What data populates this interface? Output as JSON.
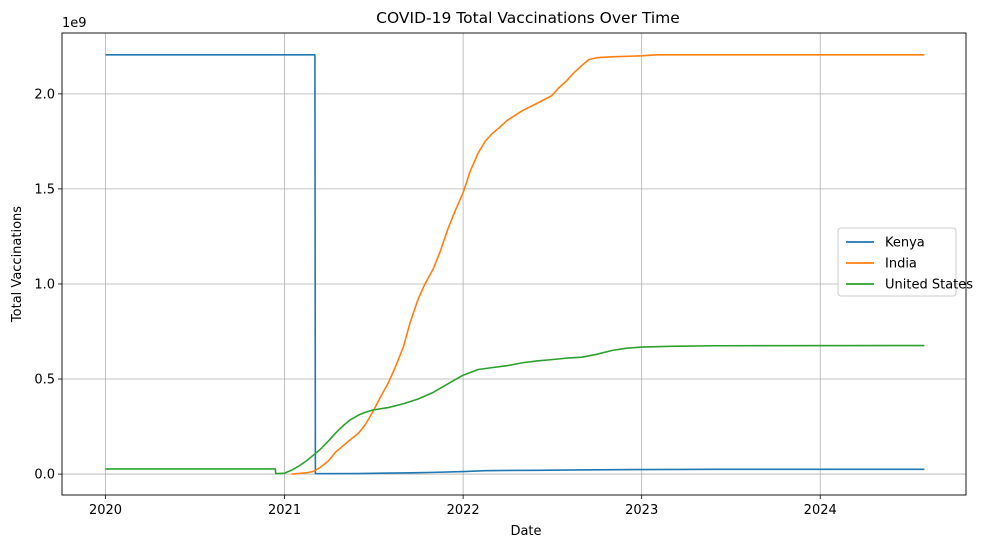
{
  "chart_data": {
    "type": "line",
    "title": "COVID-19 Total Vaccinations Over Time",
    "xlabel": "Date",
    "ylabel": "Total Vaccinations",
    "y_offset_label": "1e9",
    "y_scale": 1000000000,
    "xlim": [
      "2019-10-04",
      "2024-10-25"
    ],
    "ylim": [
      -110000000,
      2320000000
    ],
    "grid": true,
    "legend_position": "center-right",
    "x_ticks": [
      {
        "date": "2020-01-01",
        "label": "2020"
      },
      {
        "date": "2021-01-01",
        "label": "2021"
      },
      {
        "date": "2022-01-01",
        "label": "2022"
      },
      {
        "date": "2023-01-01",
        "label": "2023"
      },
      {
        "date": "2024-01-01",
        "label": "2024"
      }
    ],
    "y_ticks": [
      {
        "value": 0,
        "label": "0.0"
      },
      {
        "value": 500000000,
        "label": "0.5"
      },
      {
        "value": 1000000000,
        "label": "1.0"
      },
      {
        "value": 1500000000,
        "label": "1.5"
      },
      {
        "value": 2000000000,
        "label": "2.0"
      }
    ],
    "series": [
      {
        "name": "Kenya",
        "color": "#1f77b4",
        "points": [
          [
            "2020-01-01",
            2205000000
          ],
          [
            "2021-03-04",
            2205000000
          ],
          [
            "2021-03-05",
            2000000
          ],
          [
            "2021-06-01",
            3000000
          ],
          [
            "2021-09-01",
            6000000
          ],
          [
            "2021-11-01",
            9000000
          ],
          [
            "2022-01-01",
            13000000
          ],
          [
            "2022-02-15",
            18000000
          ],
          [
            "2022-04-01",
            19000000
          ],
          [
            "2022-06-01",
            20000000
          ],
          [
            "2022-08-20",
            22000000
          ],
          [
            "2023-01-01",
            24000000
          ],
          [
            "2023-06-01",
            25000000
          ],
          [
            "2024-08-01",
            25000000
          ]
        ]
      },
      {
        "name": "India",
        "color": "#ff7f0e",
        "points": [
          [
            "2021-01-16",
            0
          ],
          [
            "2021-02-15",
            7000000
          ],
          [
            "2021-03-01",
            14000000
          ],
          [
            "2021-03-15",
            35000000
          ],
          [
            "2021-04-01",
            70000000
          ],
          [
            "2021-04-15",
            115000000
          ],
          [
            "2021-05-01",
            150000000
          ],
          [
            "2021-05-15",
            180000000
          ],
          [
            "2021-06-01",
            215000000
          ],
          [
            "2021-06-15",
            260000000
          ],
          [
            "2021-07-01",
            330000000
          ],
          [
            "2021-07-15",
            400000000
          ],
          [
            "2021-08-01",
            480000000
          ],
          [
            "2021-08-15",
            560000000
          ],
          [
            "2021-09-01",
            670000000
          ],
          [
            "2021-09-15",
            800000000
          ],
          [
            "2021-10-01",
            920000000
          ],
          [
            "2021-10-15",
            1000000000
          ],
          [
            "2021-11-01",
            1080000000
          ],
          [
            "2021-11-15",
            1170000000
          ],
          [
            "2021-12-01",
            1290000000
          ],
          [
            "2021-12-15",
            1380000000
          ],
          [
            "2022-01-01",
            1480000000
          ],
          [
            "2022-01-15",
            1590000000
          ],
          [
            "2022-02-01",
            1690000000
          ],
          [
            "2022-02-15",
            1750000000
          ],
          [
            "2022-03-01",
            1790000000
          ],
          [
            "2022-03-15",
            1820000000
          ],
          [
            "2022-04-01",
            1860000000
          ],
          [
            "2022-05-01",
            1910000000
          ],
          [
            "2022-06-01",
            1950000000
          ],
          [
            "2022-07-01",
            1990000000
          ],
          [
            "2022-07-15",
            2030000000
          ],
          [
            "2022-08-01",
            2070000000
          ],
          [
            "2022-08-15",
            2110000000
          ],
          [
            "2022-09-01",
            2150000000
          ],
          [
            "2022-09-15",
            2180000000
          ],
          [
            "2022-10-01",
            2190000000
          ],
          [
            "2022-11-01",
            2195000000
          ],
          [
            "2023-01-01",
            2200000000
          ],
          [
            "2023-02-01",
            2205000000
          ],
          [
            "2024-08-01",
            2205000000
          ]
        ]
      },
      {
        "name": "United States",
        "color": "#2ca02c",
        "points": [
          [
            "2020-01-01",
            27000000
          ],
          [
            "2020-12-13",
            27000000
          ],
          [
            "2020-12-14",
            2000000
          ],
          [
            "2021-01-01",
            5000000
          ],
          [
            "2021-01-15",
            20000000
          ],
          [
            "2021-02-01",
            45000000
          ],
          [
            "2021-02-15",
            70000000
          ],
          [
            "2021-03-01",
            100000000
          ],
          [
            "2021-03-15",
            130000000
          ],
          [
            "2021-04-01",
            175000000
          ],
          [
            "2021-04-15",
            215000000
          ],
          [
            "2021-05-01",
            255000000
          ],
          [
            "2021-05-15",
            285000000
          ],
          [
            "2021-06-01",
            310000000
          ],
          [
            "2021-06-15",
            325000000
          ],
          [
            "2021-07-01",
            337000000
          ],
          [
            "2021-08-01",
            350000000
          ],
          [
            "2021-09-01",
            370000000
          ],
          [
            "2021-10-01",
            395000000
          ],
          [
            "2021-11-01",
            430000000
          ],
          [
            "2021-12-01",
            475000000
          ],
          [
            "2022-01-01",
            520000000
          ],
          [
            "2022-02-01",
            550000000
          ],
          [
            "2022-03-01",
            560000000
          ],
          [
            "2022-04-01",
            570000000
          ],
          [
            "2022-05-01",
            585000000
          ],
          [
            "2022-06-01",
            595000000
          ],
          [
            "2022-07-01",
            602000000
          ],
          [
            "2022-08-01",
            610000000
          ],
          [
            "2022-09-01",
            615000000
          ],
          [
            "2022-10-01",
            630000000
          ],
          [
            "2022-11-01",
            650000000
          ],
          [
            "2022-12-01",
            662000000
          ],
          [
            "2023-01-01",
            668000000
          ],
          [
            "2023-03-01",
            672000000
          ],
          [
            "2023-06-01",
            675000000
          ],
          [
            "2024-08-01",
            676000000
          ]
        ]
      }
    ]
  }
}
